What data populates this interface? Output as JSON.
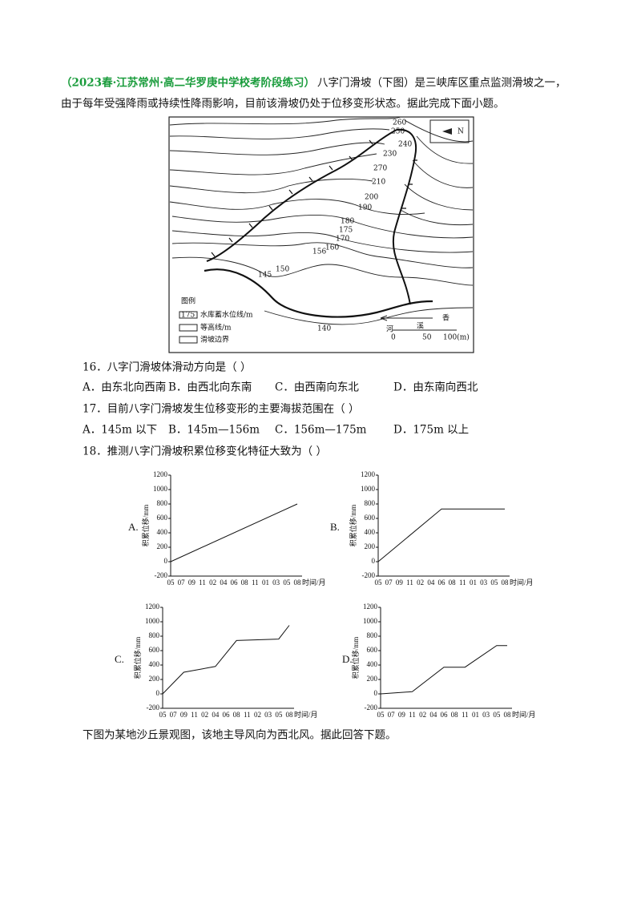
{
  "intro": {
    "source": "（2023春·江苏常州·高二华罗庚中学校考阶段练习）",
    "line1": "八字门滑坡（下图）是三峡库区重点监测滑坡之一，",
    "line2": "由于每年受强降雨或持续性降雨影响，目前该滑坡仍处于位移变形状态。据此完成下面小题。"
  },
  "map": {
    "contour_labels": [
      "260",
      "250",
      "240",
      "230",
      "270",
      "210",
      "200",
      "190",
      "180",
      "175",
      "170",
      "160",
      "156",
      "150",
      "145",
      "140"
    ],
    "north": "N",
    "legend": {
      "title": "图例",
      "sample": "175",
      "items": [
        "水库蓄水位线/m",
        "等高线/m",
        "滑坡边界"
      ]
    },
    "river": [
      "香",
      "溪",
      "河"
    ],
    "scale": [
      "0",
      "50",
      "100(m)"
    ]
  },
  "questions": [
    {
      "stem": "16．八字门滑坡体滑动方向是（ ）",
      "options": [
        "A．由东北向西南",
        "B．由西北向东南",
        "C．由西南向东北",
        "D．由东南向西北"
      ]
    },
    {
      "stem": "17．目前八字门滑坡发生位移变形的主要海拔范围在（ ）",
      "options": [
        "A．145m 以下",
        "B．145m—156m",
        "C．156m—175m",
        "D．175m 以上"
      ]
    },
    {
      "stem": "18．推测八字门滑坡积累位移变化特征大致为（ ）"
    }
  ],
  "chart_data": [
    {
      "type": "line",
      "option": "A.",
      "ylabel": "积累位移/mm",
      "xlabel": "时间/月",
      "categories": [
        "05",
        "07",
        "09",
        "11",
        "02",
        "04",
        "06",
        "08",
        "11",
        "01",
        "03",
        "05",
        "08"
      ],
      "values": [
        0,
        null,
        null,
        null,
        null,
        null,
        null,
        null,
        null,
        null,
        null,
        null,
        800
      ],
      "ylim": [
        -200,
        1200
      ],
      "yticks": [
        -200,
        0,
        200,
        400,
        600,
        800,
        1000,
        1200
      ]
    },
    {
      "type": "line",
      "option": "B.",
      "ylabel": "积累位移/mm",
      "xlabel": "时间/月",
      "categories": [
        "05",
        "07",
        "09",
        "11",
        "02",
        "04",
        "06",
        "08",
        "11",
        "01",
        "03",
        "05",
        "08"
      ],
      "values": [
        0,
        null,
        null,
        null,
        null,
        null,
        730,
        null,
        null,
        null,
        null,
        null,
        730
      ],
      "ylim": [
        -200,
        1200
      ],
      "yticks": [
        -200,
        0,
        200,
        400,
        600,
        800,
        1000,
        1200
      ]
    },
    {
      "type": "line",
      "option": "C.",
      "ylabel": "积累位移/mm",
      "xlabel": "时间/月",
      "categories": [
        "05",
        "07",
        "09",
        "11",
        "02",
        "04",
        "06",
        "08",
        "11",
        "02",
        "03",
        "05",
        "08"
      ],
      "values": [
        0,
        null,
        300,
        null,
        null,
        380,
        null,
        740,
        null,
        null,
        null,
        760,
        950
      ],
      "ylim": [
        -200,
        1200
      ],
      "yticks": [
        -200,
        0,
        200,
        400,
        600,
        800,
        1000,
        1200
      ]
    },
    {
      "type": "line",
      "option": "D.",
      "ylabel": "积累位移/mm",
      "xlabel": "时间/月",
      "categories": [
        "05",
        "07",
        "09",
        "11",
        "02",
        "04",
        "06",
        "08",
        "11",
        "01",
        "03",
        "05",
        "08"
      ],
      "values": [
        0,
        null,
        null,
        30,
        null,
        null,
        370,
        null,
        370,
        null,
        null,
        670,
        670
      ],
      "ylim": [
        -200,
        1200
      ],
      "yticks": [
        -200,
        0,
        200,
        400,
        600,
        800,
        1000,
        1200
      ]
    }
  ],
  "outro": "下图为某地沙丘景观图，该地主导风向为西北风。据此回答下题。"
}
